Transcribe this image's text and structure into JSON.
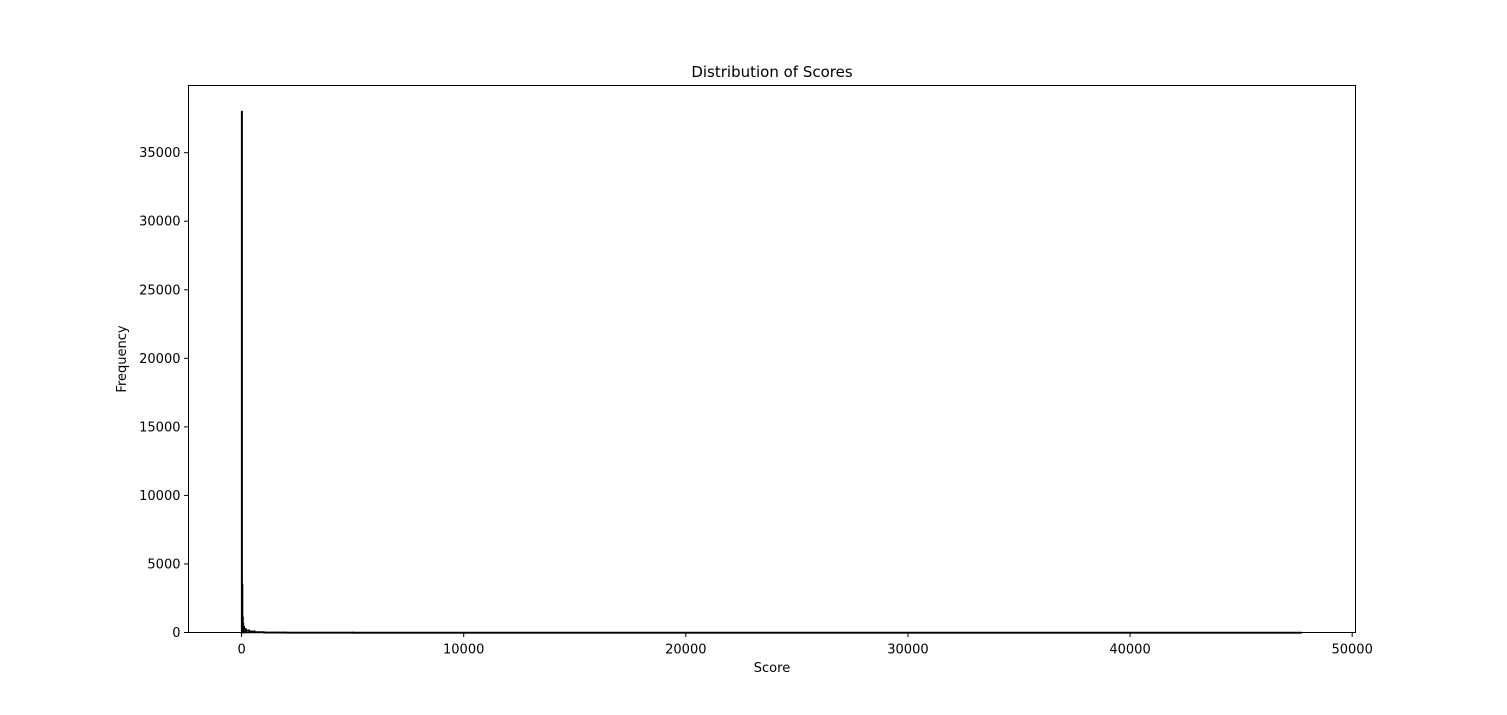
{
  "chart_data": {
    "type": "bar",
    "title": "Distribution of Scores",
    "xlabel": "Score",
    "ylabel": "Frequency",
    "xlim": [
      -2390,
      50150
    ],
    "ylim": [
      0,
      39900
    ],
    "xticks": [
      0,
      10000,
      20000,
      30000,
      40000,
      50000
    ],
    "xtick_labels": [
      "0",
      "10000",
      "20000",
      "30000",
      "40000",
      "50000"
    ],
    "yticks": [
      0,
      5000,
      10000,
      15000,
      20000,
      25000,
      30000,
      35000
    ],
    "ytick_labels": [
      "0",
      "5000",
      "10000",
      "15000",
      "20000",
      "25000",
      "30000",
      "35000"
    ],
    "grid": false,
    "bar_color": "#1f77b4",
    "edge_color": "#000000",
    "bins": [
      {
        "x0": 0,
        "x1": 20,
        "count": 38000
      },
      {
        "x0": 20,
        "x1": 40,
        "count": 3500
      },
      {
        "x0": 40,
        "x1": 60,
        "count": 1100
      },
      {
        "x0": 60,
        "x1": 80,
        "count": 650
      },
      {
        "x0": 80,
        "x1": 120,
        "count": 420
      },
      {
        "x0": 120,
        "x1": 200,
        "count": 260
      },
      {
        "x0": 200,
        "x1": 350,
        "count": 160
      },
      {
        "x0": 350,
        "x1": 600,
        "count": 90
      },
      {
        "x0": 600,
        "x1": 1000,
        "count": 40
      },
      {
        "x0": 1000,
        "x1": 2000,
        "count": 15
      },
      {
        "x0": 2000,
        "x1": 5000,
        "count": 6
      },
      {
        "x0": 5000,
        "x1": 47700,
        "count": 2
      }
    ]
  }
}
